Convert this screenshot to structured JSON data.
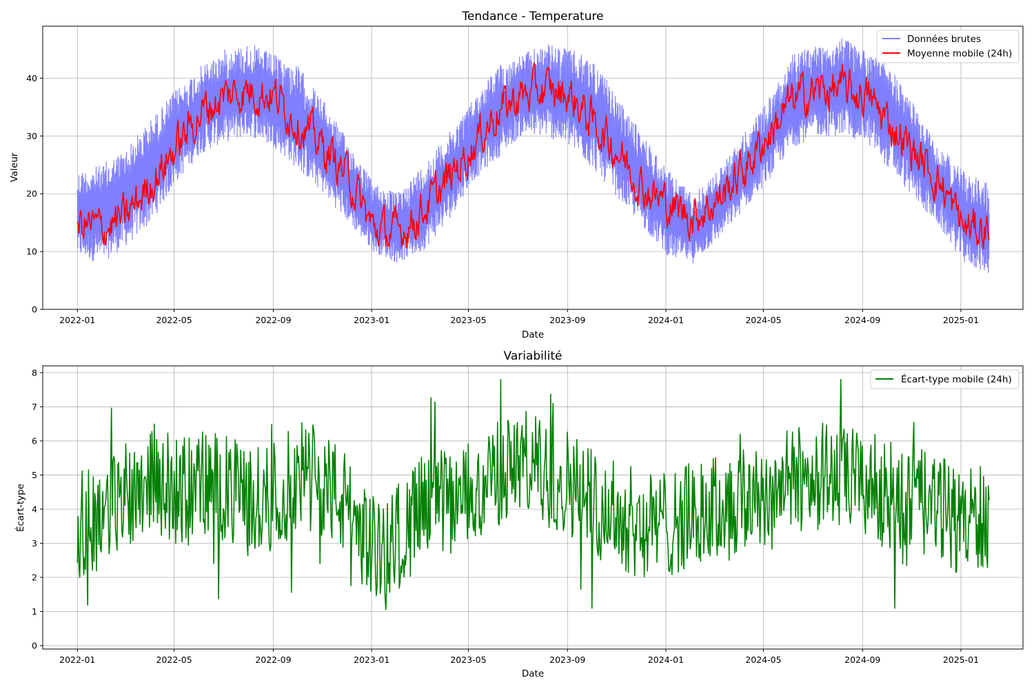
{
  "chart_data": [
    {
      "type": "line",
      "title": "Tendance - Temperature",
      "xlabel": "Date",
      "ylabel": "Valeur",
      "x_range": [
        "2021-11-19",
        "2025-03-19"
      ],
      "ylim": [
        0,
        49
      ],
      "x_ticks": [
        "2022-01",
        "2022-05",
        "2022-09",
        "2023-01",
        "2023-05",
        "2023-09",
        "2024-01",
        "2024-05",
        "2024-09",
        "2025-01"
      ],
      "y_ticks": [
        0,
        10,
        20,
        30,
        40
      ],
      "grid": true,
      "legend": "top-right",
      "series": [
        {
          "name": "Données brutes",
          "color": "#7f7fff",
          "data_start": "2022-01-01",
          "data_end": "2025-02-05",
          "min": [
            9,
            8,
            11,
            15,
            22,
            27,
            29,
            30,
            28,
            24,
            20,
            15,
            10,
            8,
            10,
            15,
            22,
            26,
            30,
            30,
            28,
            24,
            19,
            14,
            9,
            8,
            12,
            17,
            22,
            28,
            30,
            30,
            29,
            24,
            19,
            14,
            8,
            6
          ],
          "max": [
            24,
            25,
            28,
            33,
            38,
            42,
            45,
            46,
            44,
            42,
            36,
            29,
            22,
            20,
            25,
            30,
            36,
            42,
            44,
            46,
            45,
            43,
            36,
            30,
            24,
            20,
            24,
            30,
            36,
            44,
            46,
            47,
            45,
            42,
            35,
            28,
            24,
            22
          ]
        },
        {
          "name": "Moyenne mobile (24h)",
          "color": "#ff0000",
          "data_start": "2022-01-01",
          "data_end": "2025-02-05",
          "values": [
            15,
            14,
            16,
            22,
            28,
            34,
            37,
            38,
            37,
            32,
            28,
            23,
            14,
            13,
            17,
            22,
            28,
            34,
            37,
            38,
            37,
            32,
            27,
            21,
            18,
            16,
            19,
            24,
            30,
            36,
            38,
            38,
            37,
            32,
            27,
            22,
            14,
            14
          ]
        }
      ]
    },
    {
      "type": "line",
      "title": "Variabilité",
      "xlabel": "Date",
      "ylabel": "Écart-type",
      "x_range": [
        "2021-11-19",
        "2025-03-19"
      ],
      "ylim": [
        -0.1,
        8.2
      ],
      "x_ticks": [
        "2022-01",
        "2022-05",
        "2022-09",
        "2023-01",
        "2023-05",
        "2023-09",
        "2024-01",
        "2024-05",
        "2024-09",
        "2025-01"
      ],
      "y_ticks": [
        0,
        1,
        2,
        3,
        4,
        5,
        6,
        7,
        8
      ],
      "grid": true,
      "legend": "top-right",
      "series": [
        {
          "name": "Écart-type mobile (24h)",
          "color": "#008000",
          "data_start": "2022-01-01",
          "data_end": "2025-02-05",
          "values": [
            3.5,
            3.8,
            4.5,
            5.0,
            4.5,
            4.8,
            4.6,
            4.2,
            4.4,
            5.0,
            4.8,
            4.0,
            2.8,
            3.2,
            4.0,
            4.2,
            4.4,
            5.0,
            5.4,
            5.0,
            4.8,
            4.2,
            3.8,
            3.5,
            3.6,
            3.8,
            4.0,
            4.2,
            4.5,
            4.8,
            5.0,
            4.9,
            4.7,
            4.4,
            4.2,
            4.0,
            3.6,
            3.8
          ]
        }
      ]
    }
  ]
}
